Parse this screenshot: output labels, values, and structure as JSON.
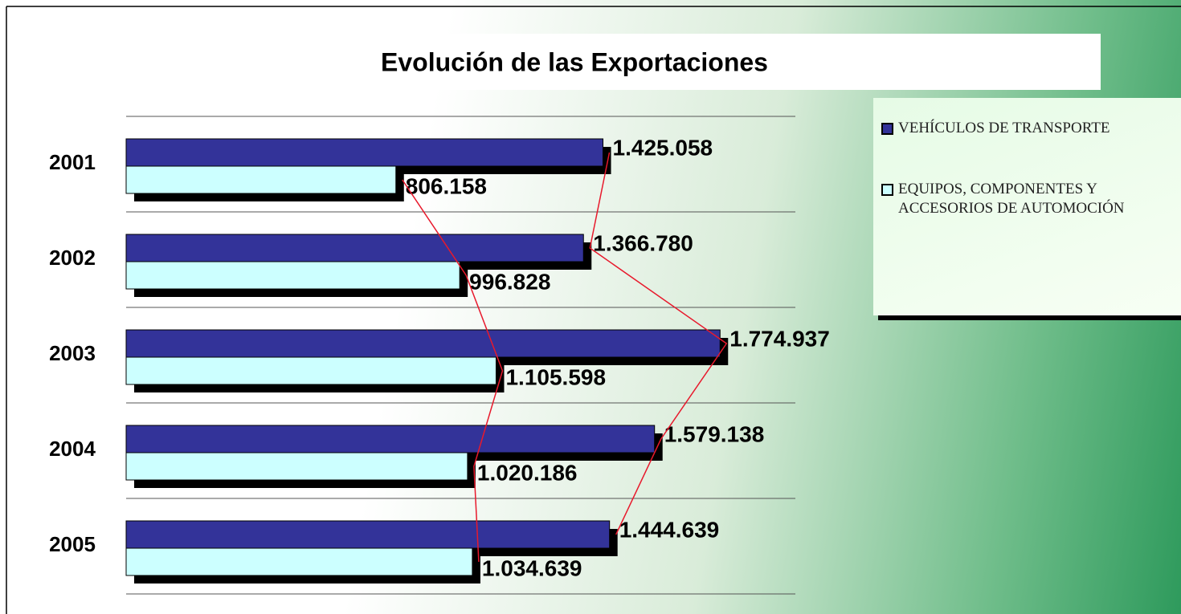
{
  "chart_data": {
    "type": "bar",
    "orientation": "horizontal",
    "title": "Evolución de las Exportaciones",
    "categories": [
      "2001",
      "2002",
      "2003",
      "2004",
      "2005"
    ],
    "series": [
      {
        "name": "VEHÍCULOS DE TRANSPORTE",
        "color": "#333399",
        "values": [
          1425058,
          1366780,
          1774937,
          1579138,
          1444639
        ],
        "value_labels": [
          "1.425.058",
          "1.366.780",
          "1.774.937",
          "1.579.138",
          "1.444.639"
        ]
      },
      {
        "name": "EQUIPOS, COMPONENTES Y ACCESORIOS DE AUTOMOCIÓN",
        "color": "#ccffff",
        "values": [
          806158,
          996828,
          1105598,
          1020186,
          1034639
        ],
        "value_labels": [
          "806.158",
          "996.828",
          "1.105.598",
          "1.020.186",
          "1.034.639"
        ]
      }
    ],
    "xlim": [
      0,
      2000000
    ],
    "line_color": "#e8192c",
    "legend": "right"
  }
}
